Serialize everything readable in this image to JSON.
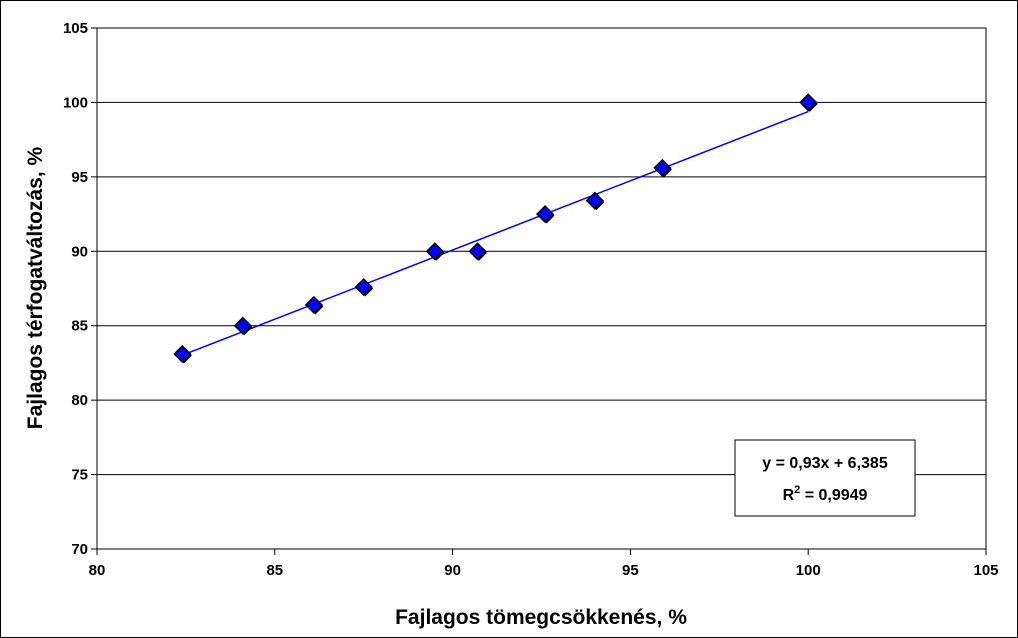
{
  "chart_data": {
    "type": "scatter",
    "title": "",
    "xlabel": "Fajlagos tömegcsökkenés, %",
    "ylabel": "Fajlagos térfogatváltozás, %",
    "xlim": [
      80,
      105
    ],
    "ylim": [
      70,
      105
    ],
    "x_ticks": [
      "80",
      "85",
      "90",
      "95",
      "100",
      "105"
    ],
    "y_ticks": [
      "70",
      "75",
      "80",
      "85",
      "90",
      "95",
      "100",
      "105"
    ],
    "grid": "horizontal",
    "series": [
      {
        "name": "",
        "color": "#0000ff",
        "marker": "diamond",
        "x": [
          82.4,
          84.1,
          86.1,
          87.5,
          89.5,
          90.7,
          92.6,
          94.0,
          95.9,
          100.0
        ],
        "y": [
          83.1,
          85.0,
          86.4,
          87.6,
          90.0,
          90.0,
          92.5,
          93.4,
          95.6,
          100.0
        ]
      }
    ],
    "trendline": {
      "slope": 0.93,
      "intercept": 6.385,
      "x_range": [
        82.4,
        100.0
      ],
      "color": "#0000ff",
      "equation": "y = 0,93x + 6,385",
      "r2_label": "R",
      "r2_sup": "2",
      "r2_value": " = 0,9949",
      "box_position": "bottom-right"
    }
  }
}
